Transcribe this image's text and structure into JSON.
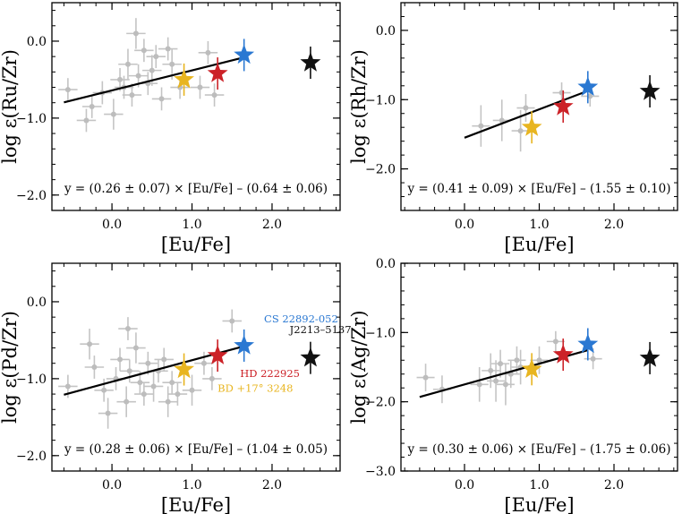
{
  "chart_data": [
    {
      "type": "scatter",
      "name": "ru",
      "xlabel": "[Eu/Fe]",
      "ylabel": "log ε(Ru/Zr)",
      "xlim": [
        -0.75,
        2.85
      ],
      "ylim": [
        -2.2,
        0.5
      ],
      "xticks": [
        0.0,
        1.0,
        2.0
      ],
      "xtick_labels": [
        "0.0",
        "1.0",
        "2.0"
      ],
      "yticks": [
        -2.0,
        -1.0,
        0.0
      ],
      "ytick_labels": [
        "-2.0",
        "-1.0",
        "0.0"
      ],
      "equation": "y = (0.26 ± 0.07) × [Eu/Fe] – (0.64 ± 0.06)",
      "fit": {
        "slope": 0.26,
        "intercept": -0.64,
        "x_range": [
          -0.6,
          1.65
        ]
      },
      "points": [
        {
          "x": -0.55,
          "y": -0.63,
          "ex": 0.12,
          "ey": 0.15
        },
        {
          "x": -0.32,
          "y": -1.03,
          "ex": 0.12,
          "ey": 0.15
        },
        {
          "x": -0.25,
          "y": -0.85,
          "ex": 0.12,
          "ey": 0.15
        },
        {
          "x": -0.12,
          "y": -0.67,
          "ex": 0.12,
          "ey": 0.15
        },
        {
          "x": 0.02,
          "y": -0.95,
          "ex": 0.12,
          "ey": 0.2
        },
        {
          "x": 0.1,
          "y": -0.5,
          "ex": 0.12,
          "ey": 0.15
        },
        {
          "x": 0.15,
          "y": -0.6,
          "ex": 0.12,
          "ey": 0.15
        },
        {
          "x": 0.2,
          "y": -0.3,
          "ex": 0.12,
          "ey": 0.2
        },
        {
          "x": 0.25,
          "y": -0.7,
          "ex": 0.12,
          "ey": 0.15
        },
        {
          "x": 0.3,
          "y": 0.1,
          "ex": 0.12,
          "ey": 0.2
        },
        {
          "x": 0.33,
          "y": -0.45,
          "ex": 0.12,
          "ey": 0.15
        },
        {
          "x": 0.4,
          "y": -0.12,
          "ex": 0.12,
          "ey": 0.15
        },
        {
          "x": 0.45,
          "y": -0.55,
          "ex": 0.12,
          "ey": 0.15
        },
        {
          "x": 0.5,
          "y": -0.38,
          "ex": 0.12,
          "ey": 0.2
        },
        {
          "x": 0.55,
          "y": -0.2,
          "ex": 0.12,
          "ey": 0.15
        },
        {
          "x": 0.62,
          "y": -0.75,
          "ex": 0.12,
          "ey": 0.15
        },
        {
          "x": 0.7,
          "y": -0.1,
          "ex": 0.12,
          "ey": 0.15
        },
        {
          "x": 0.75,
          "y": -0.3,
          "ex": 0.12,
          "ey": 0.2
        },
        {
          "x": 0.85,
          "y": -0.6,
          "ex": 0.12,
          "ey": 0.15
        },
        {
          "x": 1.1,
          "y": -0.6,
          "ex": 0.12,
          "ey": 0.15
        },
        {
          "x": 1.2,
          "y": -0.15,
          "ex": 0.12,
          "ey": 0.15
        },
        {
          "x": 1.28,
          "y": -0.7,
          "ex": 0.12,
          "ey": 0.15
        }
      ],
      "stars": [
        {
          "name": "BD +17° 3248",
          "x": 0.9,
          "y": -0.5,
          "color": "#e8b520"
        },
        {
          "name": "HD 222925",
          "x": 1.32,
          "y": -0.42,
          "color": "#cc2228"
        },
        {
          "name": "CS 22892-052",
          "x": 1.65,
          "y": -0.18,
          "color": "#2a78d2"
        },
        {
          "name": "J2213-5137",
          "x": 2.48,
          "y": -0.28,
          "color": "#111111"
        }
      ],
      "annotations": []
    },
    {
      "type": "scatter",
      "name": "rh",
      "xlabel": "[Eu/Fe]",
      "ylabel": "log ε(Rh/Zr)",
      "xlim": [
        -0.85,
        2.85
      ],
      "ylim": [
        -2.6,
        0.4
      ],
      "xticks": [
        0.0,
        1.0,
        2.0
      ],
      "xtick_labels": [
        "0.0",
        "1.0",
        "2.0"
      ],
      "yticks": [
        -2.0,
        -1.0,
        0.0
      ],
      "ytick_labels": [
        "-2.0",
        "-1.0",
        "0.0"
      ],
      "equation": "y = (0.41 ± 0.09) × [Eu/Fe] – (1.55 ± 0.10)",
      "fit": {
        "slope": 0.41,
        "intercept": -1.55,
        "x_range": [
          0.0,
          1.65
        ]
      },
      "points": [
        {
          "x": 0.22,
          "y": -1.38,
          "ex": 0.12,
          "ey": 0.3
        },
        {
          "x": 0.5,
          "y": -1.3,
          "ex": 0.12,
          "ey": 0.3
        },
        {
          "x": 0.75,
          "y": -1.45,
          "ex": 0.12,
          "ey": 0.3
        },
        {
          "x": 0.82,
          "y": -1.12,
          "ex": 0.12,
          "ey": 0.2
        },
        {
          "x": 1.3,
          "y": -0.9,
          "ex": 0.12,
          "ey": 0.15
        },
        {
          "x": 1.68,
          "y": -0.95,
          "ex": 0.12,
          "ey": 0.15
        }
      ],
      "stars": [
        {
          "name": "BD +17° 3248",
          "x": 0.9,
          "y": -1.4,
          "color": "#e8b520"
        },
        {
          "name": "HD 222925",
          "x": 1.32,
          "y": -1.1,
          "color": "#cc2228"
        },
        {
          "name": "CS 22892-052",
          "x": 1.65,
          "y": -0.82,
          "color": "#2a78d2"
        },
        {
          "name": "J2213-5137",
          "x": 2.48,
          "y": -0.88,
          "color": "#111111"
        }
      ],
      "annotations": []
    },
    {
      "type": "scatter",
      "name": "pd",
      "xlabel": "[Eu/Fe]",
      "ylabel": "log ε(Pd/Zr)",
      "xlim": [
        -0.75,
        2.85
      ],
      "ylim": [
        -2.2,
        0.5
      ],
      "xticks": [
        0.0,
        1.0,
        2.0
      ],
      "xtick_labels": [
        "0.0",
        "1.0",
        "2.0"
      ],
      "yticks": [
        -2.0,
        -1.0,
        0.0
      ],
      "ytick_labels": [
        "-2.0",
        "-1.0",
        "0.0"
      ],
      "equation": "y = (0.28 ± 0.06) × [Eu/Fe] – (1.04 ± 0.05)",
      "fit": {
        "slope": 0.28,
        "intercept": -1.04,
        "x_range": [
          -0.6,
          1.65
        ]
      },
      "points": [
        {
          "x": -0.55,
          "y": -1.1,
          "ex": 0.12,
          "ey": 0.15
        },
        {
          "x": -0.28,
          "y": -0.55,
          "ex": 0.12,
          "ey": 0.2
        },
        {
          "x": -0.22,
          "y": -0.85,
          "ex": 0.12,
          "ey": 0.15
        },
        {
          "x": -0.1,
          "y": -1.15,
          "ex": 0.12,
          "ey": 0.15
        },
        {
          "x": -0.05,
          "y": -1.45,
          "ex": 0.12,
          "ey": 0.2
        },
        {
          "x": 0.05,
          "y": -1.0,
          "ex": 0.12,
          "ey": 0.15
        },
        {
          "x": 0.1,
          "y": -0.75,
          "ex": 0.12,
          "ey": 0.15
        },
        {
          "x": 0.18,
          "y": -1.3,
          "ex": 0.12,
          "ey": 0.2
        },
        {
          "x": 0.22,
          "y": -0.9,
          "ex": 0.12,
          "ey": 0.15
        },
        {
          "x": 0.3,
          "y": -0.6,
          "ex": 0.12,
          "ey": 0.2
        },
        {
          "x": 0.35,
          "y": -1.05,
          "ex": 0.12,
          "ey": 0.15
        },
        {
          "x": 0.4,
          "y": -1.2,
          "ex": 0.12,
          "ey": 0.15
        },
        {
          "x": 0.45,
          "y": -0.8,
          "ex": 0.12,
          "ey": 0.15
        },
        {
          "x": 0.52,
          "y": -1.1,
          "ex": 0.12,
          "ey": 0.2
        },
        {
          "x": 0.58,
          "y": -0.9,
          "ex": 0.12,
          "ey": 0.15
        },
        {
          "x": 0.65,
          "y": -0.75,
          "ex": 0.12,
          "ey": 0.15
        },
        {
          "x": 0.7,
          "y": -1.3,
          "ex": 0.12,
          "ey": 0.2
        },
        {
          "x": 0.75,
          "y": -1.05,
          "ex": 0.12,
          "ey": 0.15
        },
        {
          "x": 0.82,
          "y": -1.2,
          "ex": 0.12,
          "ey": 0.15
        },
        {
          "x": 1.0,
          "y": -1.15,
          "ex": 0.12,
          "ey": 0.2
        },
        {
          "x": 1.15,
          "y": -0.8,
          "ex": 0.12,
          "ey": 0.15
        },
        {
          "x": 1.25,
          "y": -1.0,
          "ex": 0.12,
          "ey": 0.15
        },
        {
          "x": 1.5,
          "y": -0.25,
          "ex": 0.12,
          "ey": 0.15
        },
        {
          "x": 0.2,
          "y": -0.35,
          "ex": 0.12,
          "ey": 0.15
        }
      ],
      "stars": [
        {
          "name": "BD +17° 3248",
          "x": 0.9,
          "y": -0.88,
          "color": "#e8b520"
        },
        {
          "name": "HD 222925",
          "x": 1.32,
          "y": -0.7,
          "color": "#cc2228"
        },
        {
          "name": "CS 22892-052",
          "x": 1.65,
          "y": -0.57,
          "color": "#2a78d2"
        },
        {
          "name": "J2213-5137",
          "x": 2.48,
          "y": -0.73,
          "color": "#111111"
        }
      ],
      "annotations": [
        {
          "text": "CS 22892-052",
          "x": 1.9,
          "y": -0.27,
          "color": "#2a78d2"
        },
        {
          "text": "J2213–5137",
          "x": 2.22,
          "y": -0.41,
          "color": "#111111"
        },
        {
          "text": "HD 222925",
          "x": 1.6,
          "y": -0.98,
          "color": "#cc2228"
        },
        {
          "text": "BD +17° 3248",
          "x": 1.32,
          "y": -1.17,
          "color": "#e8b520"
        }
      ]
    },
    {
      "type": "scatter",
      "name": "ag",
      "xlabel": "[Eu/Fe]",
      "ylabel": "log ε(Ag/Zr)",
      "xlim": [
        -0.85,
        2.85
      ],
      "ylim": [
        -3.0,
        0.0
      ],
      "xticks": [
        0.0,
        1.0,
        2.0
      ],
      "xtick_labels": [
        "0.0",
        "1.0",
        "2.0"
      ],
      "yticks": [
        -3.0,
        -2.0,
        -1.0,
        0.0
      ],
      "ytick_labels": [
        "-3.0",
        "-2.0",
        "-1.0",
        "0.0"
      ],
      "equation": "y = (0.30 ± 0.06) × [Eu/Fe] – (1.75 ± 0.06)",
      "fit": {
        "slope": 0.3,
        "intercept": -1.75,
        "x_range": [
          -0.6,
          1.65
        ]
      },
      "points": [
        {
          "x": -0.52,
          "y": -1.65,
          "ex": 0.12,
          "ey": 0.2
        },
        {
          "x": -0.3,
          "y": -1.82,
          "ex": 0.12,
          "ey": 0.2
        },
        {
          "x": 0.2,
          "y": -1.75,
          "ex": 0.12,
          "ey": 0.25
        },
        {
          "x": 0.35,
          "y": -1.55,
          "ex": 0.12,
          "ey": 0.25
        },
        {
          "x": 0.42,
          "y": -1.7,
          "ex": 0.12,
          "ey": 0.3
        },
        {
          "x": 0.48,
          "y": -1.45,
          "ex": 0.12,
          "ey": 0.2
        },
        {
          "x": 0.55,
          "y": -1.75,
          "ex": 0.12,
          "ey": 0.3
        },
        {
          "x": 0.62,
          "y": -1.6,
          "ex": 0.12,
          "ey": 0.2
        },
        {
          "x": 0.7,
          "y": -1.4,
          "ex": 0.12,
          "ey": 0.2
        },
        {
          "x": 0.75,
          "y": -1.5,
          "ex": 0.12,
          "ey": 0.25
        },
        {
          "x": 1.0,
          "y": -1.4,
          "ex": 0.12,
          "ey": 0.2
        },
        {
          "x": 1.22,
          "y": -1.13,
          "ex": 0.12,
          "ey": 0.15
        },
        {
          "x": 1.72,
          "y": -1.38,
          "ex": 0.12,
          "ey": 0.15
        }
      ],
      "stars": [
        {
          "name": "BD +17° 3248",
          "x": 0.9,
          "y": -1.53,
          "color": "#e8b520"
        },
        {
          "name": "HD 222925",
          "x": 1.32,
          "y": -1.32,
          "color": "#cc2228"
        },
        {
          "name": "CS 22892-052",
          "x": 1.65,
          "y": -1.17,
          "color": "#2a78d2"
        },
        {
          "name": "J2213-5137",
          "x": 2.48,
          "y": -1.37,
          "color": "#111111"
        }
      ],
      "annotations": []
    }
  ]
}
